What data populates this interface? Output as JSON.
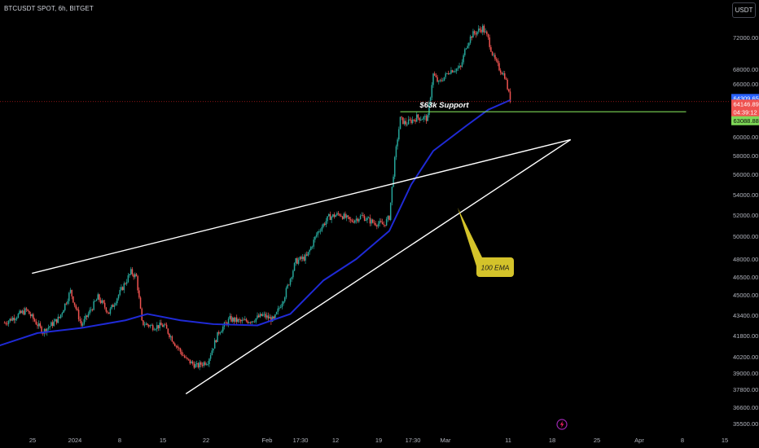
{
  "header": {
    "ticker": "BTCUSDT SPOT, 6h, BITGET"
  },
  "toolbar": {
    "currency_label": "USDT"
  },
  "colors": {
    "background": "#000000",
    "up": "#26a69a",
    "down": "#ef5350",
    "ema": "#1f2ad6",
    "trendline": "#ffffff",
    "support_line": "#7ed957",
    "callout": "#d4c32a",
    "price_line": "#b71c1c"
  },
  "chart_data": {
    "type": "candlestick",
    "title": "",
    "xlabel": "",
    "ylabel": "",
    "grid": false,
    "ylim": [
      34900,
      74500
    ],
    "x_ticks": [
      "25",
      "2024",
      "8",
      "15",
      "22",
      "Feb",
      "17:30",
      "12",
      "19",
      "17:30",
      "Mar",
      "11",
      "18",
      "25",
      "Apr",
      "8",
      "15"
    ],
    "y_ticks": [
      72000,
      68000,
      66000,
      62000,
      60000,
      58000,
      56000,
      54000,
      52000,
      50000,
      48000,
      46500,
      45000,
      43400,
      41800,
      40200,
      39000,
      37800,
      36600,
      35500
    ],
    "y_tick_labels": [
      "72000.00",
      "68000.00",
      "66000.00",
      "62000.00",
      "60000.00",
      "58000.00",
      "56000.00",
      "54000.00",
      "52000.00",
      "50000.00",
      "48000.00",
      "46500.00",
      "45000.00",
      "43400.00",
      "41800.00",
      "40200.00",
      "39000.00",
      "37800.00",
      "36600.00",
      "35500.00"
    ],
    "price_anchors": [
      {
        "day": -14,
        "close": 42800
      },
      {
        "day": -10,
        "close": 43800
      },
      {
        "day": -7,
        "close": 42100
      },
      {
        "day": -4,
        "close": 43200
      },
      {
        "day": -2,
        "close": 45300
      },
      {
        "day": 0,
        "close": 42600
      },
      {
        "day": 1,
        "close": 43300
      },
      {
        "day": 3,
        "close": 44800
      },
      {
        "day": 5,
        "close": 43600
      },
      {
        "day": 7,
        "close": 45200
      },
      {
        "day": 9,
        "close": 46900
      },
      {
        "day": 10,
        "close": 46500
      },
      {
        "day": 11,
        "close": 42800
      },
      {
        "day": 13,
        "close": 42500
      },
      {
        "day": 15,
        "close": 42600
      },
      {
        "day": 17,
        "close": 41200
      },
      {
        "day": 19,
        "close": 40000
      },
      {
        "day": 21,
        "close": 39500
      },
      {
        "day": 23,
        "close": 39900
      },
      {
        "day": 25,
        "close": 42100
      },
      {
        "day": 27,
        "close": 43100
      },
      {
        "day": 29,
        "close": 42900
      },
      {
        "day": 31,
        "close": 43000
      },
      {
        "day": 33,
        "close": 43400
      },
      {
        "day": 35,
        "close": 43000
      },
      {
        "day": 37,
        "close": 45000
      },
      {
        "day": 39,
        "close": 47800
      },
      {
        "day": 41,
        "close": 48200
      },
      {
        "day": 43,
        "close": 50400
      },
      {
        "day": 45,
        "close": 51800
      },
      {
        "day": 47,
        "close": 52100
      },
      {
        "day": 49,
        "close": 51400
      },
      {
        "day": 51,
        "close": 51900
      },
      {
        "day": 53,
        "close": 51300
      },
      {
        "day": 55,
        "close": 51100
      },
      {
        "day": 56,
        "close": 51800
      },
      {
        "day": 57,
        "close": 57500
      },
      {
        "day": 58,
        "close": 62300
      },
      {
        "day": 59,
        "close": 61800
      },
      {
        "day": 61,
        "close": 62500
      },
      {
        "day": 63,
        "close": 62400
      },
      {
        "day": 64,
        "close": 67300
      },
      {
        "day": 65,
        "close": 66100
      },
      {
        "day": 67,
        "close": 67800
      },
      {
        "day": 69,
        "close": 68200
      },
      {
        "day": 70,
        "close": 71000
      },
      {
        "day": 71,
        "close": 72300
      },
      {
        "day": 73,
        "close": 73200
      },
      {
        "day": 74,
        "close": 71800
      },
      {
        "day": 75,
        "close": 69400
      },
      {
        "day": 76,
        "close": 68100
      },
      {
        "day": 77,
        "close": 67100
      },
      {
        "day": 78,
        "close": 64146.89
      }
    ],
    "ema_100": [
      {
        "day": -16,
        "value": 40900
      },
      {
        "day": -8,
        "value": 42000
      },
      {
        "day": 0,
        "value": 42400
      },
      {
        "day": 8,
        "value": 43000
      },
      {
        "day": 12,
        "value": 43500
      },
      {
        "day": 18,
        "value": 43000
      },
      {
        "day": 24,
        "value": 42700
      },
      {
        "day": 32,
        "value": 42600
      },
      {
        "day": 38,
        "value": 43500
      },
      {
        "day": 44,
        "value": 46200
      },
      {
        "day": 50,
        "value": 48000
      },
      {
        "day": 56,
        "value": 50500
      },
      {
        "day": 60,
        "value": 55000
      },
      {
        "day": 64,
        "value": 58500
      },
      {
        "day": 70,
        "value": 61500
      },
      {
        "day": 74,
        "value": 63300
      },
      {
        "day": 78,
        "value": 64309.65
      }
    ],
    "current_price": 64146.89,
    "ema_value": 64309.65,
    "support_level": 63088.88,
    "countdown": "04:39:12",
    "trendlines": [
      {
        "name": "upper-wedge-line",
        "from": {
          "day": -9,
          "price": 46800
        },
        "to": {
          "day": 89,
          "price": 59700
        }
      },
      {
        "name": "lower-wedge-line",
        "from": {
          "day": 19,
          "price": 37500
        },
        "to": {
          "day": 89,
          "price": 59700
        }
      },
      {
        "name": "support-63k-line",
        "from": {
          "day": 58,
          "price": 63088.88
        },
        "to": {
          "day": 110,
          "price": 63088.88
        }
      }
    ],
    "annotations": [
      {
        "name": "support-label",
        "text": "$63k Support"
      },
      {
        "name": "ema-callout",
        "text": "100 EMA"
      }
    ]
  }
}
